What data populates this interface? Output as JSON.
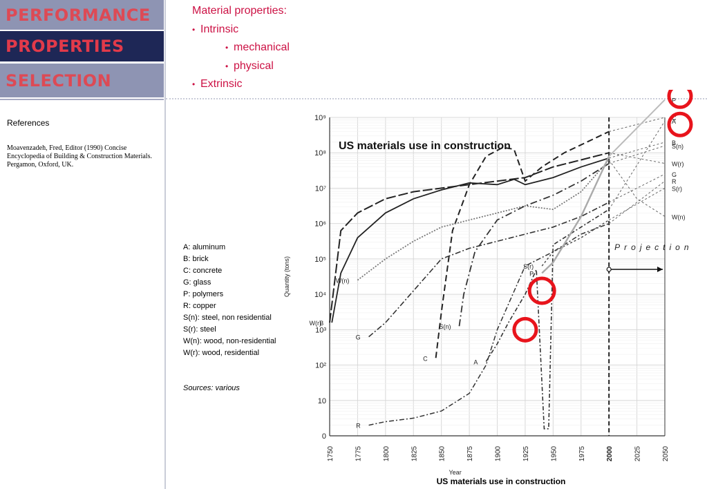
{
  "nav": {
    "performance": "PERFORMANCE",
    "properties": "PROPERTIES",
    "selection": "SELECTION"
  },
  "references": {
    "title": "References",
    "body": "Moavenzadeh, Fred, Editor (1990) Concise Encyclopedia of Building & Construction Materials. Pergamon, Oxford, UK."
  },
  "outline": {
    "heading": "Material properties:",
    "intrinsic": "Intrinsic",
    "mechanical": "mechanical",
    "physical": "physical",
    "extrinsic": "Extrinsic"
  },
  "legend": [
    "A: aluminum",
    "B: brick",
    "C: concrete",
    "G: glass",
    "P: polymers",
    "R: copper",
    "S(n): steel, non residential",
    "S(r): steel",
    "W(n): wood, non-residential",
    "W(r): wood, residential"
  ],
  "sources": "Sources: various",
  "caption": "US materials use in construction",
  "colors": {
    "nav_light": "#8e94b3",
    "nav_dark": "#1e2756",
    "nav_text": "#dd4a55",
    "bullet_text": "#cc1144",
    "highlight_circle": "#e8141c"
  },
  "chart_data": {
    "type": "line",
    "title": "US materials use in construction",
    "xlabel": "Year",
    "ylabel": "Quantity (tons)",
    "x_ticks": [
      "1750",
      "1775",
      "1800",
      "1825",
      "1850",
      "1875",
      "1900",
      "1925",
      "1950",
      "1975",
      "2000",
      "2025",
      "2050"
    ],
    "y_ticks": [
      "0",
      "10",
      "10²",
      "10³",
      "10⁴",
      "10⁵",
      "10⁶",
      "10⁷",
      "10⁸",
      "10⁹"
    ],
    "y_scale": "log",
    "xlim": [
      1750,
      2050
    ],
    "ylim_exponent": [
      0,
      9
    ],
    "annotation": "Projection",
    "grid": true,
    "series": [
      {
        "name": "B",
        "points": [
          [
            1752,
            3.2
          ],
          [
            1760,
            4.6
          ],
          [
            1775,
            5.6
          ],
          [
            1800,
            6.3
          ],
          [
            1825,
            6.7
          ],
          [
            1850,
            6.95
          ],
          [
            1875,
            7.15
          ],
          [
            1900,
            7.1
          ],
          [
            1915,
            7.25
          ],
          [
            1925,
            7.1
          ],
          [
            1950,
            7.3
          ],
          [
            1975,
            7.6
          ],
          [
            2000,
            7.85
          ]
        ],
        "projection": [
          [
            2000,
            7.85
          ],
          [
            2050,
            8.3
          ]
        ]
      },
      {
        "name": "C",
        "points": [
          [
            1845,
            2.2
          ],
          [
            1850,
            3.5
          ],
          [
            1860,
            5.8
          ],
          [
            1875,
            7.1
          ],
          [
            1890,
            7.9
          ],
          [
            1905,
            8.15
          ],
          [
            1915,
            8.1
          ],
          [
            1925,
            7.2
          ],
          [
            1940,
            7.6
          ],
          [
            1960,
            8.0
          ],
          [
            1980,
            8.3
          ],
          [
            2000,
            8.6
          ]
        ],
        "projection": [
          [
            2000,
            8.6
          ],
          [
            2050,
            9.0
          ]
        ]
      },
      {
        "name": "G",
        "points": [
          [
            1785,
            2.8
          ],
          [
            1800,
            3.2
          ],
          [
            1825,
            4.1
          ],
          [
            1850,
            5.0
          ],
          [
            1875,
            5.3
          ],
          [
            1900,
            5.5
          ],
          [
            1925,
            5.7
          ],
          [
            1950,
            5.9
          ],
          [
            1975,
            6.2
          ],
          [
            2000,
            6.6
          ]
        ],
        "projection": [
          [
            2000,
            6.6
          ],
          [
            2050,
            7.4
          ]
        ]
      },
      {
        "name": "R",
        "points": [
          [
            1785,
            0.3
          ],
          [
            1800,
            0.4
          ],
          [
            1825,
            0.5
          ],
          [
            1850,
            0.7
          ],
          [
            1875,
            1.2
          ],
          [
            1890,
            2.0
          ],
          [
            1900,
            3.0
          ],
          [
            1925,
            4.8
          ],
          [
            1950,
            5.2
          ],
          [
            1975,
            5.7
          ],
          [
            2000,
            6.0
          ]
        ],
        "projection": [
          [
            2000,
            6.0
          ],
          [
            2050,
            7.2
          ]
        ]
      },
      {
        "name": "W(n)",
        "points": [
          [
            1775,
            4.4
          ],
          [
            1800,
            5.0
          ],
          [
            1825,
            5.5
          ],
          [
            1850,
            5.9
          ],
          [
            1875,
            6.1
          ],
          [
            1900,
            6.3
          ],
          [
            1925,
            6.5
          ],
          [
            1950,
            6.4
          ],
          [
            1975,
            6.9
          ],
          [
            2000,
            7.8
          ]
        ],
        "projection": [
          [
            2000,
            7.8
          ],
          [
            2025,
            6.7
          ],
          [
            2050,
            6.2
          ]
        ]
      },
      {
        "name": "W(r)",
        "points": [
          [
            1750,
            3.2
          ],
          [
            1760,
            5.8
          ],
          [
            1775,
            6.3
          ],
          [
            1800,
            6.7
          ],
          [
            1825,
            6.9
          ],
          [
            1850,
            7.0
          ],
          [
            1875,
            7.1
          ],
          [
            1900,
            7.2
          ],
          [
            1925,
            7.3
          ],
          [
            1950,
            7.6
          ],
          [
            1975,
            7.8
          ],
          [
            2000,
            8.0
          ]
        ],
        "projection": [
          [
            2000,
            8.0
          ],
          [
            2050,
            7.7
          ]
        ]
      },
      {
        "name": "S(n)",
        "points": [
          [
            1866,
            3.1
          ],
          [
            1870,
            4.0
          ],
          [
            1880,
            5.2
          ],
          [
            1900,
            6.1
          ],
          [
            1925,
            6.5
          ],
          [
            1950,
            6.8
          ],
          [
            1975,
            7.2
          ],
          [
            2000,
            7.7
          ]
        ],
        "projection": [
          [
            2000,
            7.7
          ],
          [
            2050,
            8.2
          ]
        ]
      },
      {
        "name": "S(r)",
        "points": [
          [
            1940,
            4.8
          ],
          [
            1950,
            5.2
          ],
          [
            1975,
            5.6
          ],
          [
            2000,
            6.1
          ]
        ],
        "projection": [
          [
            2000,
            6.1
          ],
          [
            2050,
            7.0
          ]
        ]
      },
      {
        "name": "A",
        "points": [
          [
            1890,
            2.1
          ],
          [
            1900,
            2.6
          ],
          [
            1910,
            3.2
          ],
          [
            1925,
            4.0
          ],
          [
            1935,
            4.7
          ],
          [
            1942,
            0.2
          ],
          [
            1946,
            0.2
          ],
          [
            1950,
            5.4
          ],
          [
            1975,
            5.9
          ],
          [
            2000,
            6.4
          ]
        ],
        "projection": [
          [
            2000,
            6.4
          ],
          [
            2050,
            8.9
          ]
        ]
      },
      {
        "name": "P",
        "points": [
          [
            1940,
            4.6
          ],
          [
            1950,
            4.9
          ],
          [
            1975,
            6.2
          ],
          [
            2000,
            7.9
          ]
        ],
        "projection": [
          [
            2000,
            7.9
          ],
          [
            2050,
            9.5
          ]
        ]
      }
    ]
  }
}
